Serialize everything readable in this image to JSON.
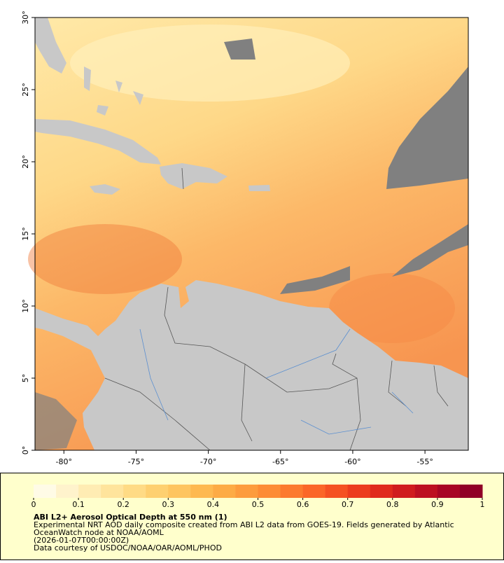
{
  "map": {
    "xlim": [
      -82,
      -52
    ],
    "ylim": [
      0,
      30
    ],
    "xticks": [
      {
        "value": -80,
        "label": "-80°"
      },
      {
        "value": -75,
        "label": "-75°"
      },
      {
        "value": -70,
        "label": "-70°"
      },
      {
        "value": -65,
        "label": "-65°"
      },
      {
        "value": -60,
        "label": "-60°"
      },
      {
        "value": -55,
        "label": "-55°"
      }
    ],
    "yticks": [
      {
        "value": 0,
        "label": "0°"
      },
      {
        "value": 5,
        "label": "5°"
      },
      {
        "value": 10,
        "label": "10°"
      },
      {
        "value": 15,
        "label": "15°"
      },
      {
        "value": 20,
        "label": "20°"
      },
      {
        "value": 25,
        "label": "25°"
      },
      {
        "value": 30,
        "label": "30°"
      }
    ]
  },
  "colorbar": {
    "range": [
      0,
      1
    ],
    "ticks": [
      0,
      0.1,
      0.2,
      0.3,
      0.4,
      0.5,
      0.6,
      0.7,
      0.8,
      0.9,
      1
    ],
    "colors": [
      "#fffbe6",
      "#fff3cc",
      "#ffecb3",
      "#ffe49c",
      "#ffdb85",
      "#fed070",
      "#fec560",
      "#feb950",
      "#fdab45",
      "#fd9c3d",
      "#fd8c35",
      "#fc7a2e",
      "#fb6628",
      "#f55122",
      "#ec3c1e",
      "#e02a1c",
      "#d01c1e",
      "#bd1021",
      "#a80624",
      "#900026"
    ]
  },
  "caption": {
    "title": "ABI L2+ Aerosol Optical Depth at 550 nm (1)",
    "lines": [
      "Experimental NRT AOD daily composite created from ABI L2 data from GOES-19. Fields generated by Atlantic",
      "OceanWatch node at NOAA/AOML",
      "(2026-01-07T00:00:00Z)",
      "Data courtesy of USDOC/NOAA/OAR/AOML/PHOD"
    ]
  }
}
